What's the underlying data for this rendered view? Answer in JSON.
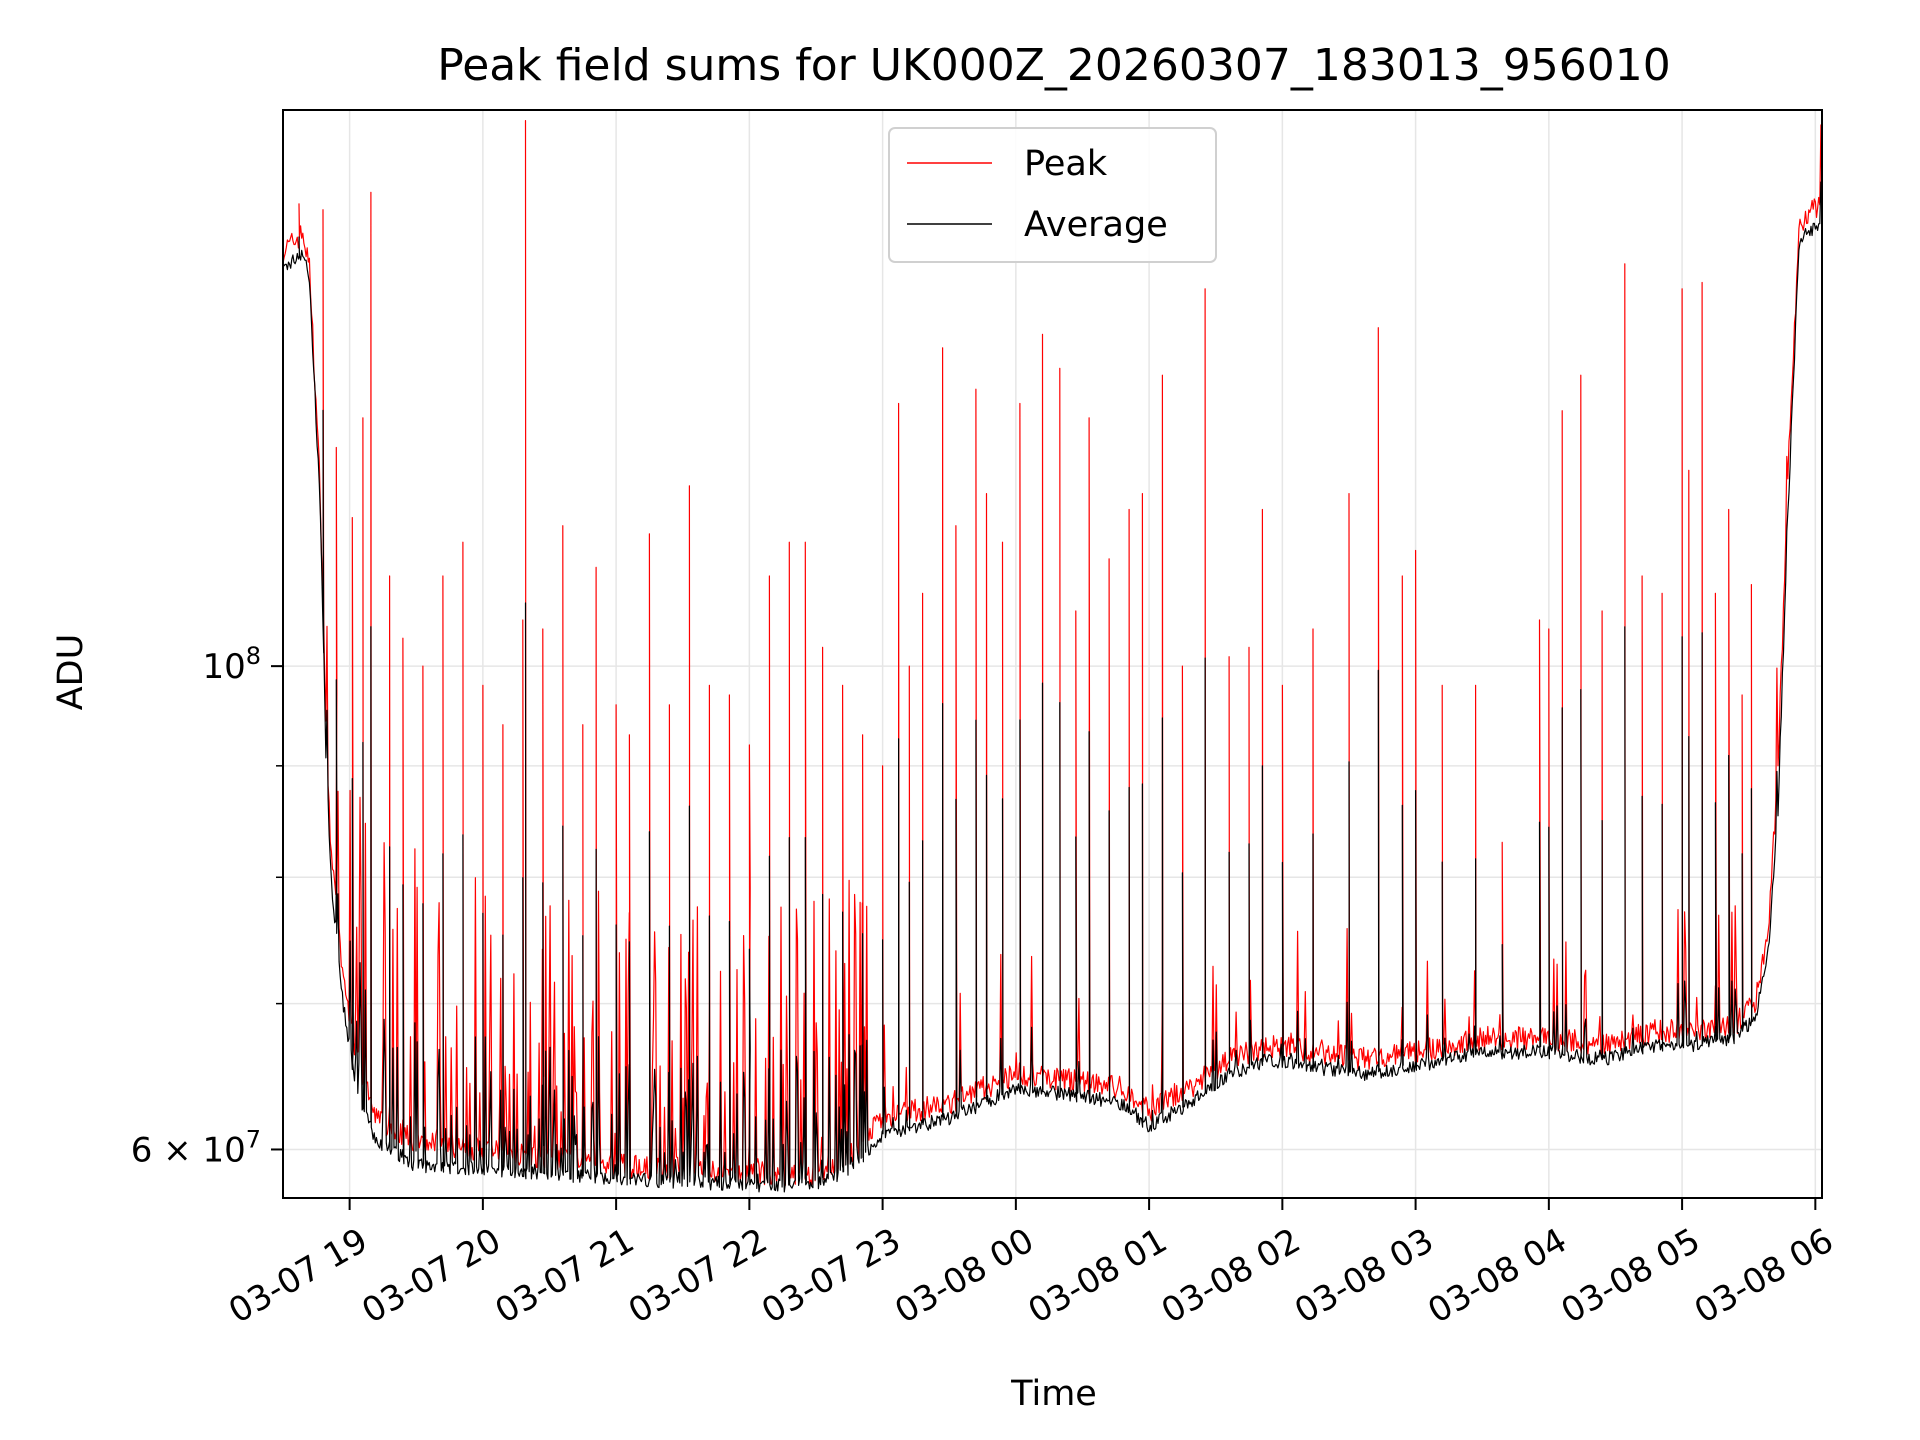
{
  "chart_data": {
    "type": "line",
    "title": "Peak field sums for UK000Z_20260307_183013_956010",
    "xlabel": "Time",
    "ylabel": "ADU",
    "yscale": "log",
    "ylim": [
      57000000,
      180000000
    ],
    "xlim_hours": [
      18.5,
      30.05
    ],
    "x_unit": "hours since 2026-03-07 00:00",
    "grid": true,
    "legend_position": "top-center",
    "x_ticks": [
      {
        "value": 19,
        "label": "03-07 19"
      },
      {
        "value": 20,
        "label": "03-07 20"
      },
      {
        "value": 21,
        "label": "03-07 21"
      },
      {
        "value": 22,
        "label": "03-07 22"
      },
      {
        "value": 23,
        "label": "03-07 23"
      },
      {
        "value": 24,
        "label": "03-08 00"
      },
      {
        "value": 25,
        "label": "03-08 01"
      },
      {
        "value": 26,
        "label": "03-08 02"
      },
      {
        "value": 27,
        "label": "03-08 03"
      },
      {
        "value": 28,
        "label": "03-08 04"
      },
      {
        "value": 29,
        "label": "03-08 05"
      },
      {
        "value": 30,
        "label": "03-08 06"
      }
    ],
    "y_ticks_major": [
      {
        "value": 60000000,
        "base": "6",
        "mult": "×",
        "exp_base": "10",
        "exp": "7"
      },
      {
        "value": 100000000,
        "base": "",
        "mult": "",
        "exp_base": "10",
        "exp": "8"
      }
    ],
    "y_ticks_minor": [
      70000000,
      80000000,
      90000000
    ],
    "series": [
      {
        "name": "Peak",
        "color": "#ff0000",
        "baseline": [
          [
            18.5,
            155000000
          ],
          [
            18.65,
            158000000
          ],
          [
            18.7,
            152000000
          ],
          [
            18.78,
            120000000
          ],
          [
            18.82,
            95000000
          ],
          [
            18.86,
            82000000
          ],
          [
            18.95,
            72000000
          ],
          [
            19.05,
            66000000
          ],
          [
            19.2,
            62000000
          ],
          [
            19.5,
            60500000
          ],
          [
            20.0,
            60000000
          ],
          [
            20.5,
            59500000
          ],
          [
            21.0,
            59000000
          ],
          [
            21.5,
            58800000
          ],
          [
            22.0,
            58500000
          ],
          [
            22.5,
            58500000
          ],
          [
            22.8,
            60000000
          ],
          [
            23.0,
            62000000
          ],
          [
            23.5,
            63000000
          ],
          [
            24.0,
            65000000
          ],
          [
            24.5,
            64500000
          ],
          [
            24.8,
            64000000
          ],
          [
            25.0,
            62500000
          ],
          [
            25.3,
            64000000
          ],
          [
            25.6,
            66000000
          ],
          [
            25.9,
            67000000
          ],
          [
            26.2,
            66500000
          ],
          [
            26.6,
            66000000
          ],
          [
            27.0,
            66500000
          ],
          [
            27.5,
            67500000
          ],
          [
            28.0,
            67500000
          ],
          [
            28.4,
            67000000
          ],
          [
            28.8,
            68000000
          ],
          [
            29.1,
            68000000
          ],
          [
            29.4,
            68500000
          ],
          [
            29.55,
            70000000
          ],
          [
            29.65,
            76000000
          ],
          [
            29.72,
            90000000
          ],
          [
            29.8,
            125000000
          ],
          [
            29.88,
            160000000
          ],
          [
            30.05,
            163000000
          ]
        ],
        "spikes": [
          [
            18.62,
            163000000
          ],
          [
            18.8,
            162000000
          ],
          [
            18.9,
            126000000
          ],
          [
            19.02,
            117000000
          ],
          [
            19.1,
            130000000
          ],
          [
            19.16,
            165000000
          ],
          [
            19.3,
            110000000
          ],
          [
            19.4,
            103000000
          ],
          [
            19.55,
            100000000
          ],
          [
            19.7,
            110000000
          ],
          [
            19.85,
            114000000
          ],
          [
            20.0,
            98000000
          ],
          [
            20.15,
            94000000
          ],
          [
            20.3,
            105000000
          ],
          [
            20.32,
            178000000
          ],
          [
            20.45,
            104000000
          ],
          [
            20.6,
            116000000
          ],
          [
            20.75,
            94000000
          ],
          [
            20.85,
            111000000
          ],
          [
            21.0,
            96000000
          ],
          [
            21.1,
            93000000
          ],
          [
            21.25,
            115000000
          ],
          [
            21.4,
            96000000
          ],
          [
            21.55,
            121000000
          ],
          [
            21.7,
            98000000
          ],
          [
            21.85,
            97000000
          ],
          [
            22.0,
            92000000
          ],
          [
            22.15,
            110000000
          ],
          [
            22.3,
            114000000
          ],
          [
            22.42,
            114000000
          ],
          [
            22.55,
            102000000
          ],
          [
            22.7,
            98000000
          ],
          [
            22.85,
            93000000
          ],
          [
            23.0,
            90000000
          ],
          [
            23.12,
            132000000
          ],
          [
            23.2,
            100000000
          ],
          [
            23.3,
            108000000
          ],
          [
            23.45,
            140000000
          ],
          [
            23.55,
            116000000
          ],
          [
            23.7,
            134000000
          ],
          [
            23.78,
            120000000
          ],
          [
            23.9,
            114000000
          ],
          [
            24.03,
            132000000
          ],
          [
            24.2,
            142000000
          ],
          [
            24.33,
            137000000
          ],
          [
            24.45,
            106000000
          ],
          [
            24.55,
            130000000
          ],
          [
            24.7,
            112000000
          ],
          [
            24.85,
            118000000
          ],
          [
            24.95,
            120000000
          ],
          [
            25.1,
            136000000
          ],
          [
            25.25,
            100000000
          ],
          [
            25.42,
            149000000
          ],
          [
            25.6,
            101000000
          ],
          [
            25.75,
            102000000
          ],
          [
            25.85,
            118000000
          ],
          [
            26.0,
            98000000
          ],
          [
            26.23,
            104000000
          ],
          [
            26.5,
            120000000
          ],
          [
            26.72,
            143000000
          ],
          [
            26.9,
            110000000
          ],
          [
            27.0,
            113000000
          ],
          [
            27.2,
            98000000
          ],
          [
            27.45,
            98000000
          ],
          [
            27.65,
            83000000
          ],
          [
            27.93,
            105000000
          ],
          [
            28.0,
            104000000
          ],
          [
            28.1,
            131000000
          ],
          [
            28.24,
            136000000
          ],
          [
            28.4,
            106000000
          ],
          [
            28.57,
            153000000
          ],
          [
            28.7,
            110000000
          ],
          [
            28.85,
            108000000
          ],
          [
            29.0,
            149000000
          ],
          [
            29.05,
            123000000
          ],
          [
            29.15,
            150000000
          ],
          [
            29.25,
            108000000
          ],
          [
            29.35,
            118000000
          ],
          [
            29.45,
            97000000
          ],
          [
            29.52,
            109000000
          ]
        ]
      },
      {
        "name": "Average",
        "color": "#000000",
        "baseline": [
          [
            18.5,
            152000000
          ],
          [
            18.65,
            155000000
          ],
          [
            18.7,
            150000000
          ],
          [
            18.78,
            118000000
          ],
          [
            18.82,
            92000000
          ],
          [
            18.86,
            80000000
          ],
          [
            18.95,
            70000000
          ],
          [
            19.05,
            64000000
          ],
          [
            19.2,
            60500000
          ],
          [
            19.5,
            59000000
          ],
          [
            20.0,
            58800000
          ],
          [
            20.5,
            58500000
          ],
          [
            21.0,
            58200000
          ],
          [
            21.5,
            58000000
          ],
          [
            22.0,
            57800000
          ],
          [
            22.5,
            57800000
          ],
          [
            22.8,
            59000000
          ],
          [
            23.0,
            61000000
          ],
          [
            23.5,
            62000000
          ],
          [
            24.0,
            64000000
          ],
          [
            24.5,
            63500000
          ],
          [
            24.8,
            63000000
          ],
          [
            25.0,
            61500000
          ],
          [
            25.3,
            63000000
          ],
          [
            25.6,
            65000000
          ],
          [
            25.9,
            66000000
          ],
          [
            26.2,
            65500000
          ],
          [
            26.6,
            65000000
          ],
          [
            27.0,
            65500000
          ],
          [
            27.5,
            66500000
          ],
          [
            28.0,
            66500000
          ],
          [
            28.4,
            66000000
          ],
          [
            28.8,
            67000000
          ],
          [
            29.1,
            67000000
          ],
          [
            29.4,
            67500000
          ],
          [
            29.55,
            69000000
          ],
          [
            29.65,
            74000000
          ],
          [
            29.72,
            86000000
          ],
          [
            29.8,
            120000000
          ],
          [
            29.88,
            157000000
          ],
          [
            30.05,
            160000000
          ]
        ],
        "spike_fraction": 0.55
      }
    ]
  }
}
